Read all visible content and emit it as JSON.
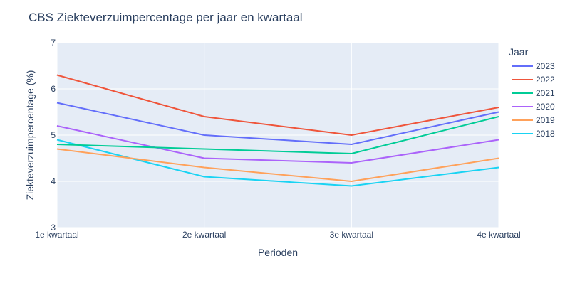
{
  "chart_data": {
    "type": "line",
    "title": "CBS Ziekteverzuimpercentage per jaar en kwartaal",
    "xlabel": "Perioden",
    "ylabel": "Ziekteverzuimpercentage (%)",
    "categories": [
      "1e kwartaal",
      "2e kwartaal",
      "3e kwartaal",
      "4e kwartaal"
    ],
    "ylim": [
      3,
      7
    ],
    "yticks": [
      3,
      4,
      5,
      6,
      7
    ],
    "grid": true,
    "plot_background": "#e5ecf6",
    "legend": {
      "title": "Jaar",
      "placement": "right"
    },
    "series": [
      {
        "name": "2023",
        "color": "#636efa",
        "values": [
          5.7,
          5.0,
          4.8,
          5.5
        ]
      },
      {
        "name": "2022",
        "color": "#ef553b",
        "values": [
          6.3,
          5.4,
          5.0,
          5.6
        ]
      },
      {
        "name": "2021",
        "color": "#00cc96",
        "values": [
          4.8,
          4.7,
          4.6,
          5.4
        ]
      },
      {
        "name": "2020",
        "color": "#ab63fa",
        "values": [
          5.2,
          4.5,
          4.4,
          4.9
        ]
      },
      {
        "name": "2019",
        "color": "#ffa15a",
        "values": [
          4.7,
          4.3,
          4.0,
          4.5
        ]
      },
      {
        "name": "2018",
        "color": "#19d3f3",
        "values": [
          4.9,
          4.1,
          3.9,
          4.3
        ]
      }
    ]
  }
}
